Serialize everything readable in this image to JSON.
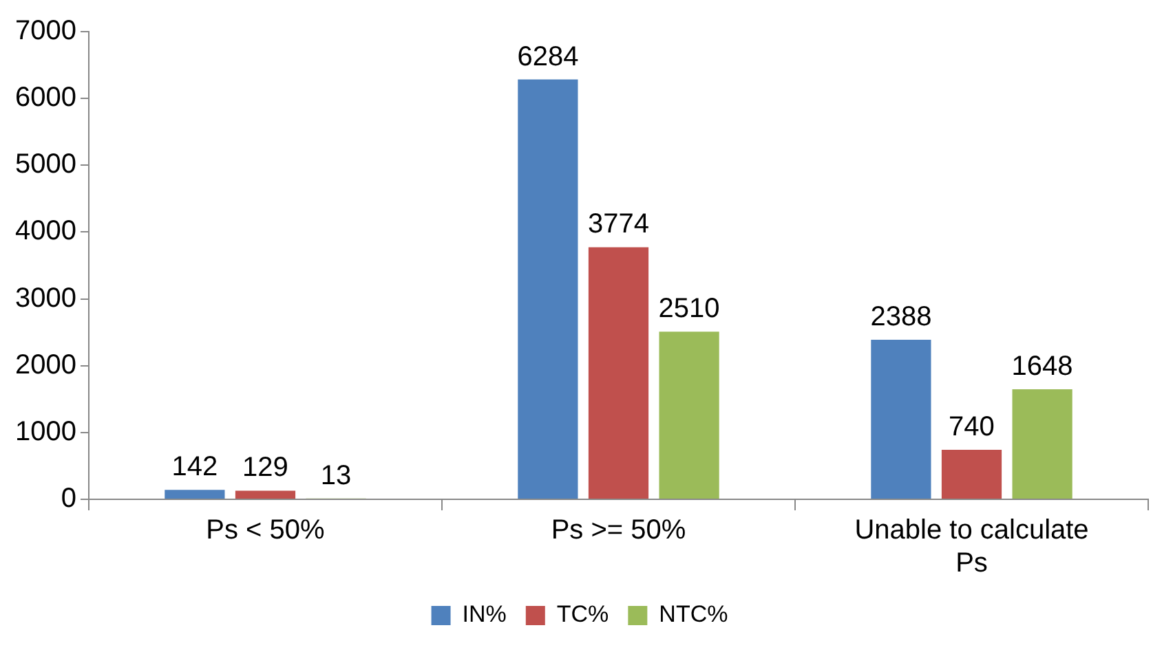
{
  "chart_data": {
    "type": "bar",
    "categories": [
      "Ps < 50%",
      "Ps >= 50%",
      "Unable to calculate Ps"
    ],
    "series": [
      {
        "name": "IN%",
        "color": "#4f81bd",
        "values": [
          142,
          6284,
          2388
        ]
      },
      {
        "name": "TC%",
        "color": "#c0504d",
        "values": [
          129,
          3774,
          740
        ]
      },
      {
        "name": "NTC%",
        "color": "#9bbb59",
        "values": [
          13,
          2510,
          1648
        ]
      }
    ],
    "ylim": [
      0,
      7000
    ],
    "yticks": [
      0,
      1000,
      2000,
      3000,
      4000,
      5000,
      6000,
      7000
    ],
    "grid": false,
    "legend": "bottom",
    "data_labels": true
  }
}
